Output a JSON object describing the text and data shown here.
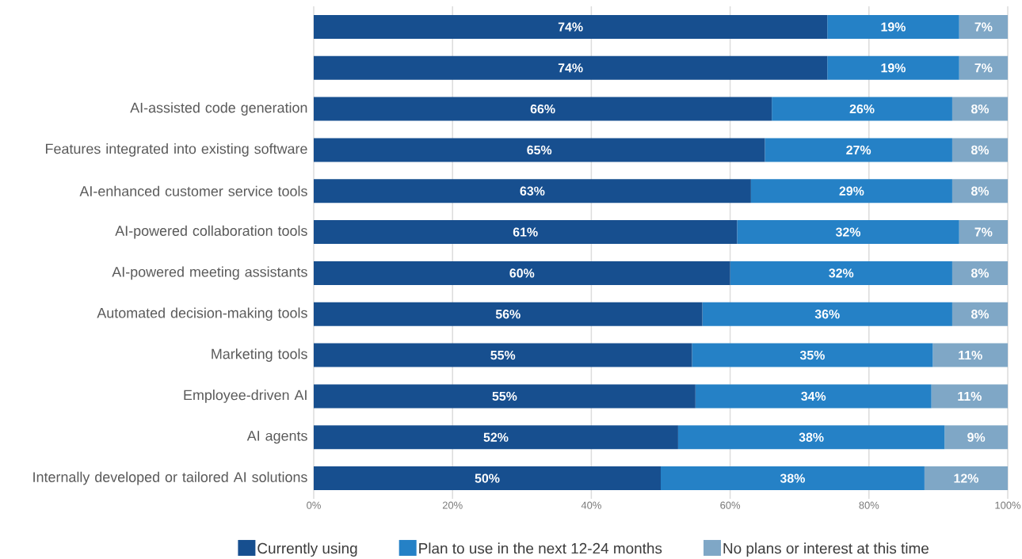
{
  "chart_data": {
    "type": "bar",
    "orientation": "horizontal",
    "stacked": true,
    "categories": [
      null,
      null,
      "AI-assisted code generation",
      "Features integrated into existing software",
      "AI-enhanced customer service tools",
      "AI-powered collaboration tools",
      "AI-powered meeting assistants",
      "Automated decision-making tools",
      "Marketing tools",
      "Employee-driven AI",
      "AI agents",
      "Internally developed or tailored AI solutions"
    ],
    "series": [
      {
        "name": "Currently using",
        "color": "#174f8f",
        "values": [
          74,
          74,
          66,
          65,
          63,
          61,
          60,
          56,
          54.5,
          55,
          52.5,
          50
        ],
        "value_labels": [
          "74%",
          "74%",
          "66%",
          "65%",
          "63%",
          "61%",
          "60%",
          "56%",
          "55%",
          "55%",
          "52%",
          "50%"
        ]
      },
      {
        "name": "Plan to use in the next 12-24 months",
        "color": "#2581c6",
        "values": [
          19,
          19,
          26,
          27,
          29,
          32,
          32,
          36,
          34.7,
          34,
          38.4,
          38
        ],
        "value_labels": [
          "19%",
          "19%",
          "26%",
          "27%",
          "29%",
          "32%",
          "32%",
          "36%",
          "35%",
          "34%",
          "38%",
          "38%"
        ]
      },
      {
        "name": "No plans or interest at this time",
        "color": "#7fa7c6",
        "values": [
          7,
          7,
          8,
          8,
          8,
          7,
          8,
          8,
          10.8,
          11,
          9.1,
          12
        ],
        "value_labels": [
          "7%",
          "7%",
          "8%",
          "8%",
          "8%",
          "7%",
          "8%",
          "8%",
          "11%",
          "11%",
          "9%",
          "12%"
        ]
      }
    ],
    "xlim": [
      0,
      100
    ],
    "xticks": [
      {
        "value": 0,
        "label": "0%"
      },
      {
        "value": 20,
        "label": "20%"
      },
      {
        "value": 40,
        "label": "40%"
      },
      {
        "value": 60,
        "label": "60%"
      },
      {
        "value": 80,
        "label": "80%"
      },
      {
        "value": 100,
        "label": "100%"
      }
    ],
    "grid": "x",
    "legend": "bottom"
  }
}
